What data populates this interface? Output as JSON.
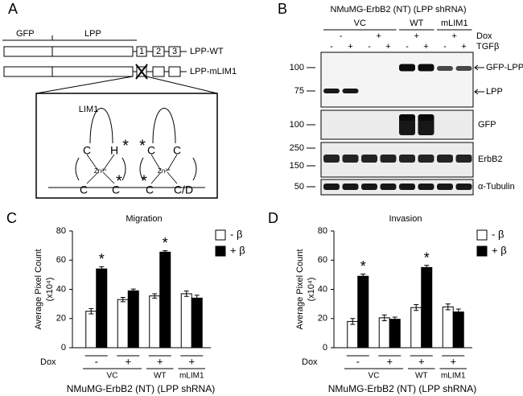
{
  "panel_a": {
    "letter": "A",
    "domains": [
      "GFP",
      "LPP"
    ],
    "lim_numbers": [
      "1",
      "2",
      "3"
    ],
    "constructs": [
      "LPP-WT",
      "LPP-mLIM1"
    ],
    "inset_title": "LIM1",
    "residues": [
      "C",
      "H",
      "C",
      "C",
      "C",
      "C",
      "C",
      "C/D"
    ],
    "zinc": "Zn²⁺",
    "asterisk": "*"
  },
  "panel_b": {
    "letter": "B",
    "header": "NMuMG-ErbB2 (NT) (LPP shRNA)",
    "groups": [
      "VC",
      "WT",
      "mLIM1"
    ],
    "dox_label": "Dox",
    "dox": [
      "-",
      "+",
      "+",
      "+"
    ],
    "tgf_label": "TGFβ",
    "tgf": [
      "-",
      "+",
      "-",
      "+",
      "-",
      "+",
      "-",
      "+"
    ],
    "blots": [
      {
        "markers": [
          "100",
          "75"
        ],
        "labels": [
          "GFP-LPP",
          "LPP"
        ]
      },
      {
        "markers": [
          "100"
        ],
        "labels": [
          "GFP"
        ]
      },
      {
        "markers": [
          "250",
          "150"
        ],
        "labels": [
          "ErbB2"
        ]
      },
      {
        "markers": [
          "50"
        ],
        "labels": [
          "α-Tubulin"
        ]
      }
    ]
  },
  "chart_data": [
    {
      "type": "bar",
      "letter": "C",
      "title": "Migration",
      "ylabel": [
        "Average Pixel Count",
        "(x10⁴)"
      ],
      "ylim": [
        0,
        80
      ],
      "yticks": [
        0,
        20,
        40,
        60,
        80
      ],
      "x_label": "Dox",
      "categories": [
        "-",
        "+",
        "+",
        "+"
      ],
      "groups": [
        "VC",
        "WT",
        "mLIM1"
      ],
      "footer": "NMuMG-ErbB2 (NT) (LPP shRNA)",
      "series": [
        {
          "name": "- β",
          "color": "#ffffff",
          "values": [
            25,
            33,
            35.5,
            37
          ],
          "errors": [
            1.8,
            1.5,
            1.5,
            1.8
          ]
        },
        {
          "name": "+ β",
          "color": "#000000",
          "values": [
            54,
            39,
            65.5,
            34
          ],
          "errors": [
            1.5,
            1.2,
            1,
            2
          ]
        }
      ],
      "annotations": [
        {
          "text": "*",
          "category": 0
        },
        {
          "text": "*",
          "category": 2
        }
      ]
    },
    {
      "type": "bar",
      "letter": "D",
      "title": "Invasion",
      "ylabel": [
        "Average Pixel Count",
        "(x10⁴)"
      ],
      "ylim": [
        0,
        80
      ],
      "yticks": [
        0,
        20,
        40,
        60,
        80
      ],
      "x_label": "Dox",
      "categories": [
        "-",
        "+",
        "+",
        "+"
      ],
      "groups": [
        "VC",
        "WT",
        "mLIM1"
      ],
      "footer": "NMuMG-ErbB2 (NT) (LPP shRNA)",
      "series": [
        {
          "name": "- β",
          "color": "#ffffff",
          "values": [
            18,
            20.5,
            27.5,
            28
          ],
          "errors": [
            2,
            2,
            2,
            2
          ]
        },
        {
          "name": "+ β",
          "color": "#000000",
          "values": [
            49,
            19.5,
            55,
            24.5
          ],
          "errors": [
            1.5,
            1.5,
            1.5,
            2
          ]
        }
      ],
      "annotations": [
        {
          "text": "*",
          "category": 0
        },
        {
          "text": "*",
          "category": 2
        }
      ]
    }
  ]
}
